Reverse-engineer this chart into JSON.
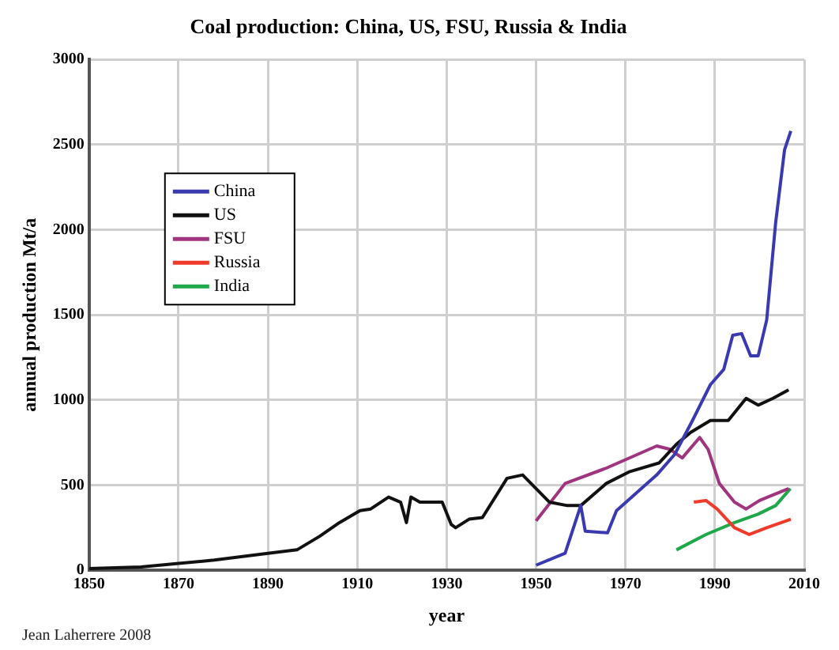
{
  "chart_data": {
    "type": "line",
    "title": "Coal production: China, US, FSU, Russia & India",
    "xlabel": "year",
    "ylabel": "annual production Mt/a",
    "annotations": [
      "Jean Laherrere 2008"
    ],
    "xlim": [
      1850,
      2010
    ],
    "xticks": [
      1850,
      1870,
      1890,
      1910,
      1930,
      1950,
      1970,
      1990,
      2010
    ],
    "ylim": [
      0,
      3000
    ],
    "yticks": [
      0,
      500,
      1000,
      1500,
      2000,
      2500,
      3000
    ],
    "grid": true,
    "legend": "top left",
    "marker": "none",
    "line_style": "solid",
    "series": [
      {
        "name": "China",
        "color": "#3a3ab0",
        "x": [
          1950,
          1956.5,
          1960,
          1961,
          1966,
          1968,
          1977,
          1981,
          1985,
          1989,
          1992,
          1994,
          1996,
          1998,
          1999.7,
          2001.6,
          2003.6,
          2005.6,
          2007
        ],
        "values": [
          30,
          100,
          380,
          230,
          220,
          350,
          560,
          680,
          880,
          1090,
          1180,
          1380,
          1390,
          1260,
          1260,
          1470,
          2040,
          2470,
          2580
        ]
      },
      {
        "name": "US",
        "color": "#111111",
        "x": [
          1850,
          1861.6,
          1870,
          1878,
          1890,
          1896.5,
          1901.6,
          1906,
          1910.6,
          1913,
          1917,
          1919.7,
          1921,
          1922,
          1924,
          1929,
          1931,
          1932,
          1935,
          1938,
          1943.5,
          1947,
          1950,
          1953,
          1957,
          1960,
          1965.7,
          1971,
          1977.5,
          1981.4,
          1984.6,
          1989,
          1993,
          1997,
          1999.7,
          2003,
          2006.5
        ],
        "values": [
          10,
          20,
          40,
          60,
          100,
          120,
          200,
          280,
          350,
          360,
          430,
          400,
          280,
          430,
          400,
          400,
          270,
          250,
          300,
          310,
          540,
          560,
          480,
          400,
          380,
          380,
          510,
          580,
          630,
          740,
          810,
          880,
          880,
          1010,
          970,
          1010,
          1060
        ]
      },
      {
        "name": "FSU",
        "color": "#a0357f",
        "x": [
          1950,
          1956.5,
          1965.7,
          1977,
          1980,
          1982.7,
          1986.6,
          1988.5,
          1991,
          1994.4,
          1997,
          2000,
          2006.5
        ],
        "values": [
          290,
          510,
          600,
          730,
          710,
          660,
          780,
          710,
          510,
          400,
          360,
          410,
          480
        ]
      },
      {
        "name": "Russia",
        "color": "#f03a2a",
        "x": [
          1985.3,
          1988,
          1990.5,
          1994.4,
          1997.7,
          2001.6,
          2007
        ],
        "values": [
          400,
          410,
          360,
          250,
          210,
          250,
          300
        ]
      },
      {
        "name": "India",
        "color": "#1fa84a",
        "x": [
          1981.4,
          1988,
          1994.4,
          1999.7,
          2003.6,
          2006.9
        ],
        "values": [
          120,
          210,
          280,
          330,
          380,
          480
        ]
      }
    ]
  }
}
